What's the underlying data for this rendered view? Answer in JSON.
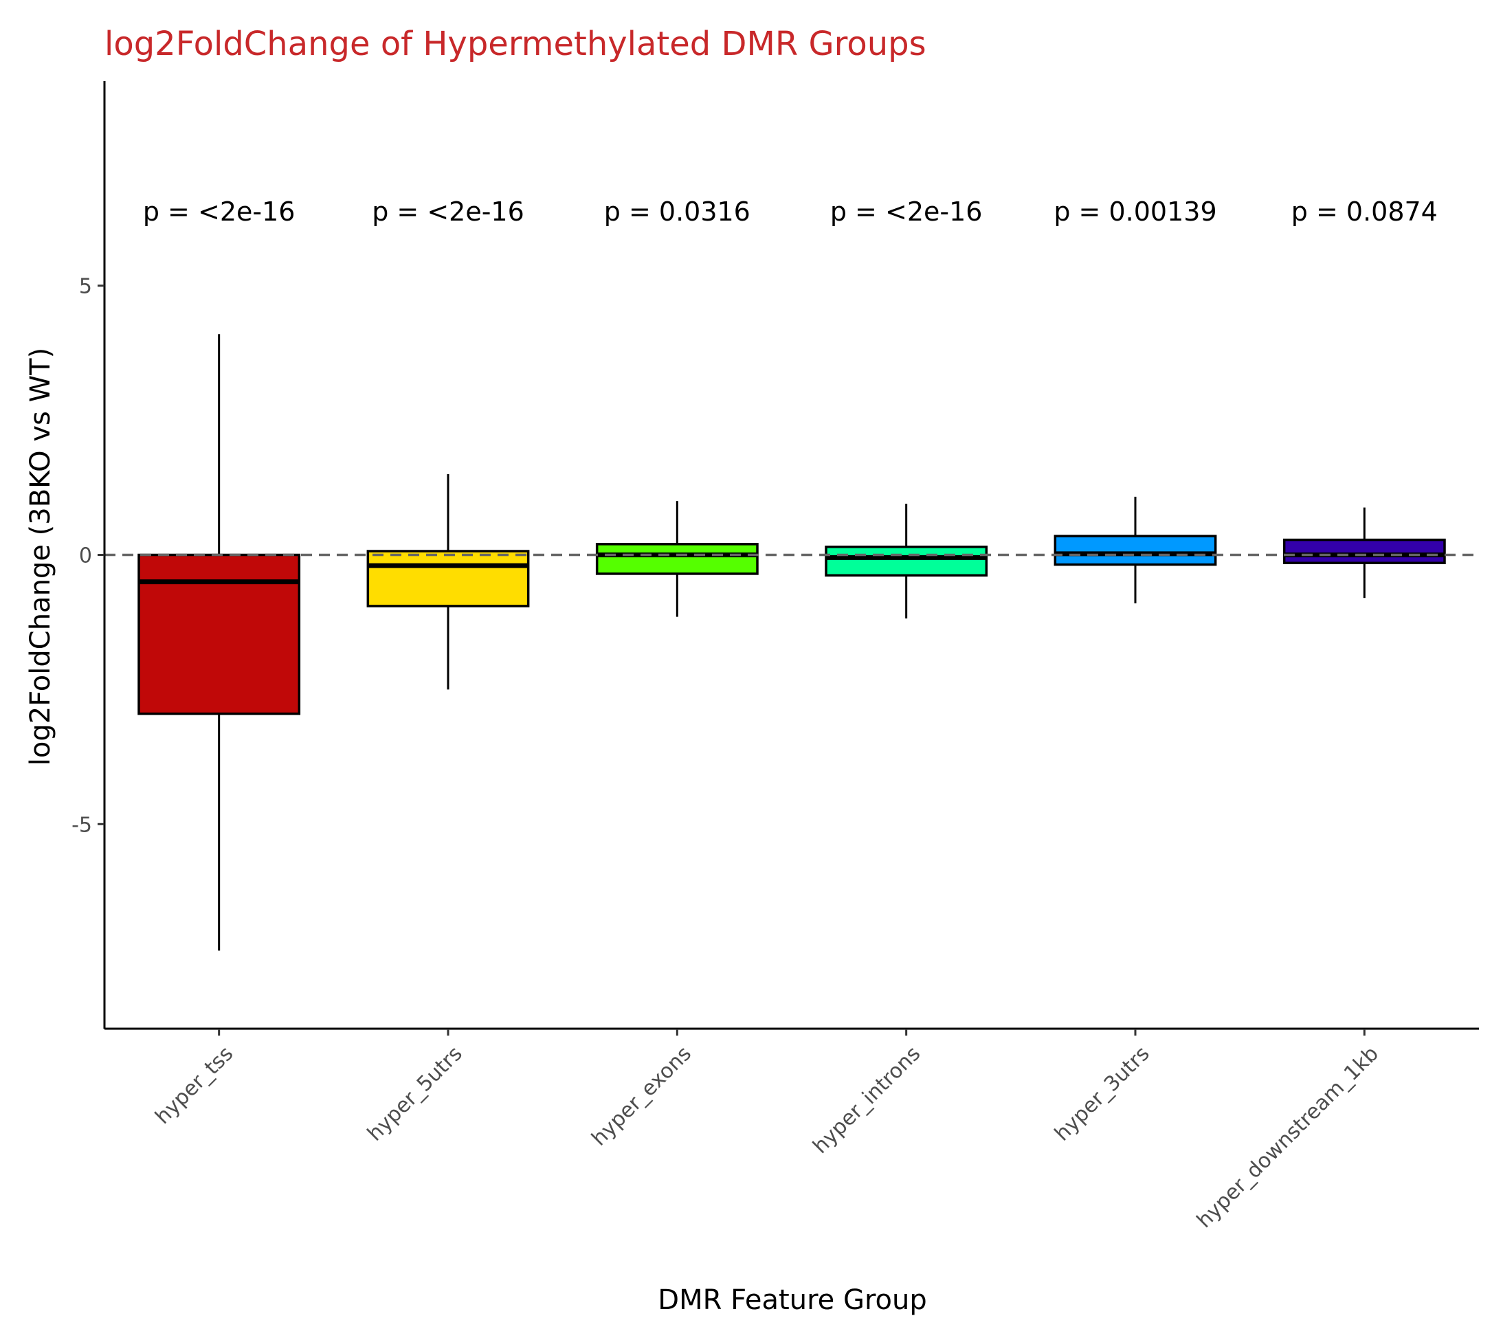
{
  "chart_data": {
    "type": "boxplot",
    "title": "log2FoldChange of Hypermethylated DMR Groups",
    "xlabel": "DMR Feature Group",
    "ylabel": "log2FoldChange (3BKO vs WT)",
    "ylim": [
      -8.8,
      8.8
    ],
    "yticks": [
      5,
      0,
      -5
    ],
    "ytick_labels": [
      "5",
      "0",
      "-5"
    ],
    "reference_line": {
      "y": 0,
      "style": "dashed",
      "color": "#666666"
    },
    "grid": false,
    "legend": "none",
    "categories": [
      "hyper_tss",
      "hyper_5utrs",
      "hyper_exons",
      "hyper_introns",
      "hyper_3utrs",
      "hyper_downstream_1kb"
    ],
    "boxes": [
      {
        "category": "hyper_tss",
        "whisker_low": -7.35,
        "q1": -2.95,
        "median": -0.5,
        "q3": 0.0,
        "whisker_high": 4.1,
        "color": "#c00808",
        "p_label": "p = <2e-16"
      },
      {
        "category": "hyper_5utrs",
        "whisker_low": -2.5,
        "q1": -0.95,
        "median": -0.2,
        "q3": 0.07,
        "whisker_high": 1.5,
        "color": "#ffdd00",
        "p_label": "p = <2e-16"
      },
      {
        "category": "hyper_exons",
        "whisker_low": -1.15,
        "q1": -0.35,
        "median": 0.0,
        "q3": 0.2,
        "whisker_high": 1.0,
        "color": "#55ff00",
        "p_label": "p = 0.0316"
      },
      {
        "category": "hyper_introns",
        "whisker_low": -1.18,
        "q1": -0.38,
        "median": -0.05,
        "q3": 0.15,
        "whisker_high": 0.95,
        "color": "#00ff99",
        "p_label": "p = <2e-16"
      },
      {
        "category": "hyper_3utrs",
        "whisker_low": -0.9,
        "q1": -0.18,
        "median": 0.02,
        "q3": 0.35,
        "whisker_high": 1.08,
        "color": "#0099ff",
        "p_label": "p = 0.00139"
      },
      {
        "category": "hyper_downstream_1kb",
        "whisker_low": -0.8,
        "q1": -0.15,
        "median": 0.0,
        "q3": 0.28,
        "whisker_high": 0.88,
        "color": "#3300aa",
        "p_label": "p = 0.0874"
      }
    ]
  }
}
